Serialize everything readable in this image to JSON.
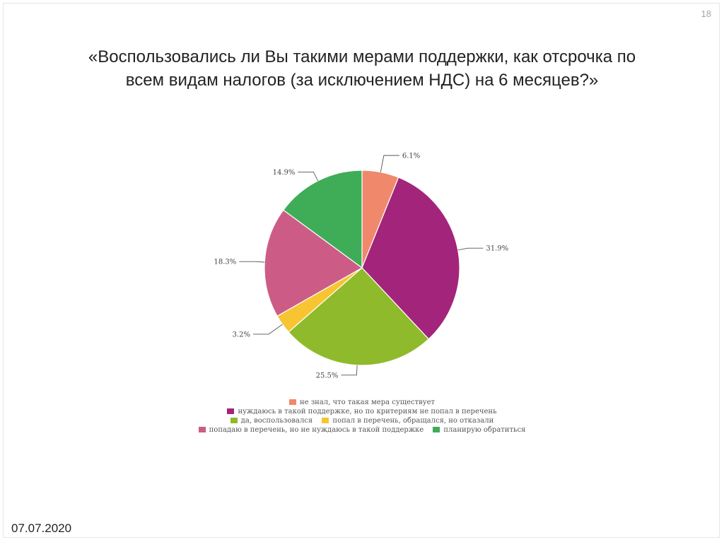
{
  "page_number": "18",
  "date": "07.07.2020",
  "chart_data": {
    "type": "pie",
    "title": "«Воспользовались ли Вы такими мерами поддержки, как отсрочка по всем видам налогов (за исключением НДС) на 6 месяцев?»",
    "title_lines": [
      "«Воспользовались ли Вы такими мерами поддержки, как отсрочка по",
      "всем видам налогов (за исключением НДС) на 6 месяцев?»"
    ],
    "start_angle_deg": 0,
    "direction": "clockwise",
    "slices": [
      {
        "label": "не знал, что такая мера существует",
        "value": 6.1,
        "display": "6.1%",
        "color": "#f0896b"
      },
      {
        "label": "нуждаюсь в такой поддержке, но по критериям не попал в перечень",
        "value": 31.9,
        "display": "31.9%",
        "color": "#a3247b"
      },
      {
        "label": "да, воспользовался",
        "value": 25.5,
        "display": "25.5%",
        "color": "#8fba2b"
      },
      {
        "label": "попал в перечень, обращался, но отказали",
        "value": 3.2,
        "display": "3.2%",
        "color": "#f7c532"
      },
      {
        "label": "попадаю в перечень, но не нуждаюсь в такой поддержке",
        "value": 18.3,
        "display": "18.3%",
        "color": "#cc5c86"
      },
      {
        "label": "планирую обратиться",
        "value": 14.9,
        "display": "14.9%",
        "color": "#3fad57"
      }
    ],
    "legend_position": "bottom"
  }
}
